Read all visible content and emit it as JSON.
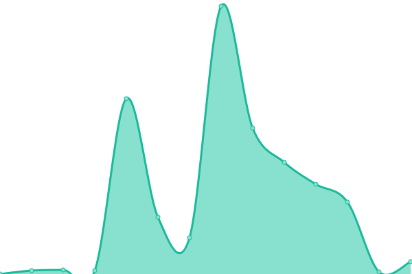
{
  "chart_data": {
    "type": "area",
    "values": [
      0,
      5,
      6,
      5,
      256,
      83,
      53,
      391,
      213,
      163,
      131,
      105,
      3,
      18
    ],
    "color": "#1bb99a",
    "fill": "#88e1cf"
  }
}
